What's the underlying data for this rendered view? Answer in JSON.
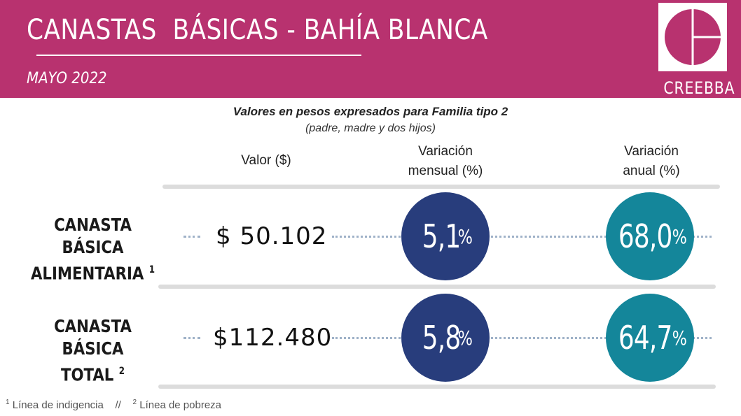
{
  "header": {
    "title": "CANASTAS  BÁSICAS - BAHÍA BLANCA",
    "date": "MAYO 2022",
    "logo_name": "CREEBBA"
  },
  "subtitle": {
    "line1": "Valores en pesos expresados para Familia tipo 2",
    "line2": "(padre, madre y dos hijos)"
  },
  "columns": {
    "valor": "Valor ($)",
    "mensual": [
      "Variación",
      "mensual (%)"
    ],
    "anual": [
      "Variación",
      "anual (%)"
    ]
  },
  "rows": [
    {
      "label": [
        "CANASTA BÁSICA",
        "ALIMENTARIA"
      ],
      "sup": "1",
      "value": "$ 50.102",
      "monthly": "5,1",
      "annual": "68,0"
    },
    {
      "label": [
        "CANASTA BÁSICA",
        "TOTAL"
      ],
      "sup": "2",
      "value": "$112.480",
      "monthly": "5,8",
      "annual": "64,7"
    }
  ],
  "percent_symbol": "%",
  "footnotes": {
    "n1": "1",
    "t1": " Línea de indigencia    //    ",
    "n2": "2",
    "t2": " Línea de pobreza"
  },
  "colors": {
    "header": "#b8326f",
    "monthly_circle": "#283d7c",
    "annual_circle": "#14869a"
  }
}
